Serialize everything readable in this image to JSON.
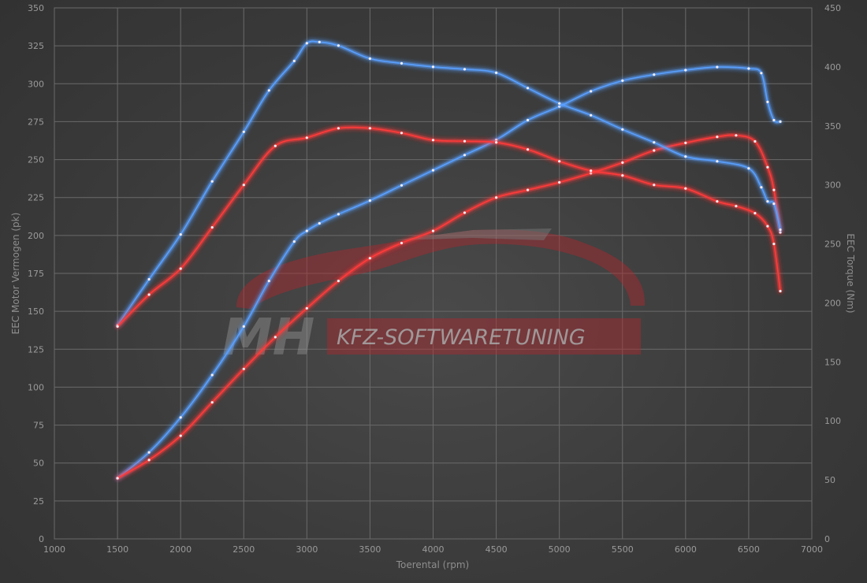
{
  "chart_data": {
    "type": "line",
    "xlabel": "Toerental (rpm)",
    "ylabel_left": "EEC Motor Vermogen (pk)",
    "ylabel_right": "EEC Torque (Nm)",
    "xlim": [
      1000,
      7000
    ],
    "ylim_left": [
      0,
      350
    ],
    "ylim_right": [
      0,
      450
    ],
    "x_ticks": [
      "1000",
      "1500",
      "2000",
      "2500",
      "3000",
      "3500",
      "4000",
      "4500",
      "5000",
      "5500",
      "6000",
      "6500",
      "7000"
    ],
    "y_left_ticks": [
      "0",
      "25",
      "50",
      "75",
      "100",
      "125",
      "150",
      "175",
      "200",
      "225",
      "250",
      "275",
      "300",
      "325",
      "350"
    ],
    "y_right_ticks": [
      "0",
      "50",
      "100",
      "150",
      "200",
      "250",
      "300",
      "350",
      "400",
      "450"
    ],
    "grid": true,
    "legend": "none",
    "colors": {
      "tuned": "#5aa0ff",
      "stock": "#ff3b3b",
      "grid": "#6a6a6a",
      "watermark_red": "#b8252c"
    },
    "series": [
      {
        "axis": "left",
        "color": "tuned",
        "x": [
          1500,
          1750,
          2000,
          2250,
          2500,
          2700,
          2900,
          3000,
          3100,
          3250,
          3500,
          3750,
          4000,
          4250,
          4500,
          4750,
          5000,
          5250,
          5500,
          5750,
          6000,
          6250,
          6500,
          6600,
          6650,
          6700,
          6750
        ],
        "y": [
          40,
          57,
          80,
          108,
          140,
          170,
          196,
          203,
          208,
          214,
          223,
          233,
          243,
          253,
          263,
          276,
          285,
          295,
          302,
          306,
          309,
          311,
          310,
          307,
          288,
          276,
          275
        ]
      },
      {
        "axis": "left",
        "color": "stock",
        "x": [
          1500,
          1750,
          2000,
          2250,
          2500,
          2750,
          3000,
          3250,
          3500,
          3750,
          4000,
          4250,
          4500,
          4750,
          5000,
          5250,
          5500,
          5750,
          6000,
          6250,
          6400,
          6550,
          6650,
          6700,
          6750
        ],
        "y": [
          40,
          52,
          68,
          90,
          112,
          133,
          152,
          170,
          185,
          195,
          203,
          215,
          225,
          230,
          235,
          241,
          248,
          256,
          261,
          265,
          266,
          262,
          245,
          230,
          202
        ]
      },
      {
        "axis": "right",
        "color": "tuned",
        "x": [
          1500,
          1750,
          2000,
          2250,
          2500,
          2700,
          2900,
          3000,
          3100,
          3250,
          3500,
          3750,
          4000,
          4250,
          4500,
          4750,
          5000,
          5250,
          5500,
          5750,
          6000,
          6250,
          6500,
          6600,
          6650,
          6700,
          6750
        ],
        "y": [
          181,
          220,
          258,
          303,
          345,
          380,
          405,
          420,
          421,
          418,
          407,
          403,
          400,
          398,
          395,
          382,
          369,
          359,
          347,
          336,
          324,
          320,
          314,
          298,
          286,
          284,
          262
        ]
      },
      {
        "axis": "right",
        "color": "stock",
        "x": [
          1500,
          1750,
          2000,
          2250,
          2500,
          2750,
          3000,
          3250,
          3500,
          3750,
          4000,
          4250,
          4500,
          4750,
          5000,
          5250,
          5500,
          5750,
          6000,
          6250,
          6400,
          6550,
          6650,
          6700,
          6750
        ],
        "y": [
          180,
          207,
          229,
          264,
          300,
          333,
          340,
          348,
          348,
          344,
          338,
          337,
          336,
          330,
          320,
          312,
          308,
          300,
          297,
          286,
          282,
          276,
          265,
          250,
          210
        ]
      }
    ]
  },
  "watermark": {
    "logo_mark": "MH",
    "text": "KFZ-SOFTWARETUNING"
  }
}
